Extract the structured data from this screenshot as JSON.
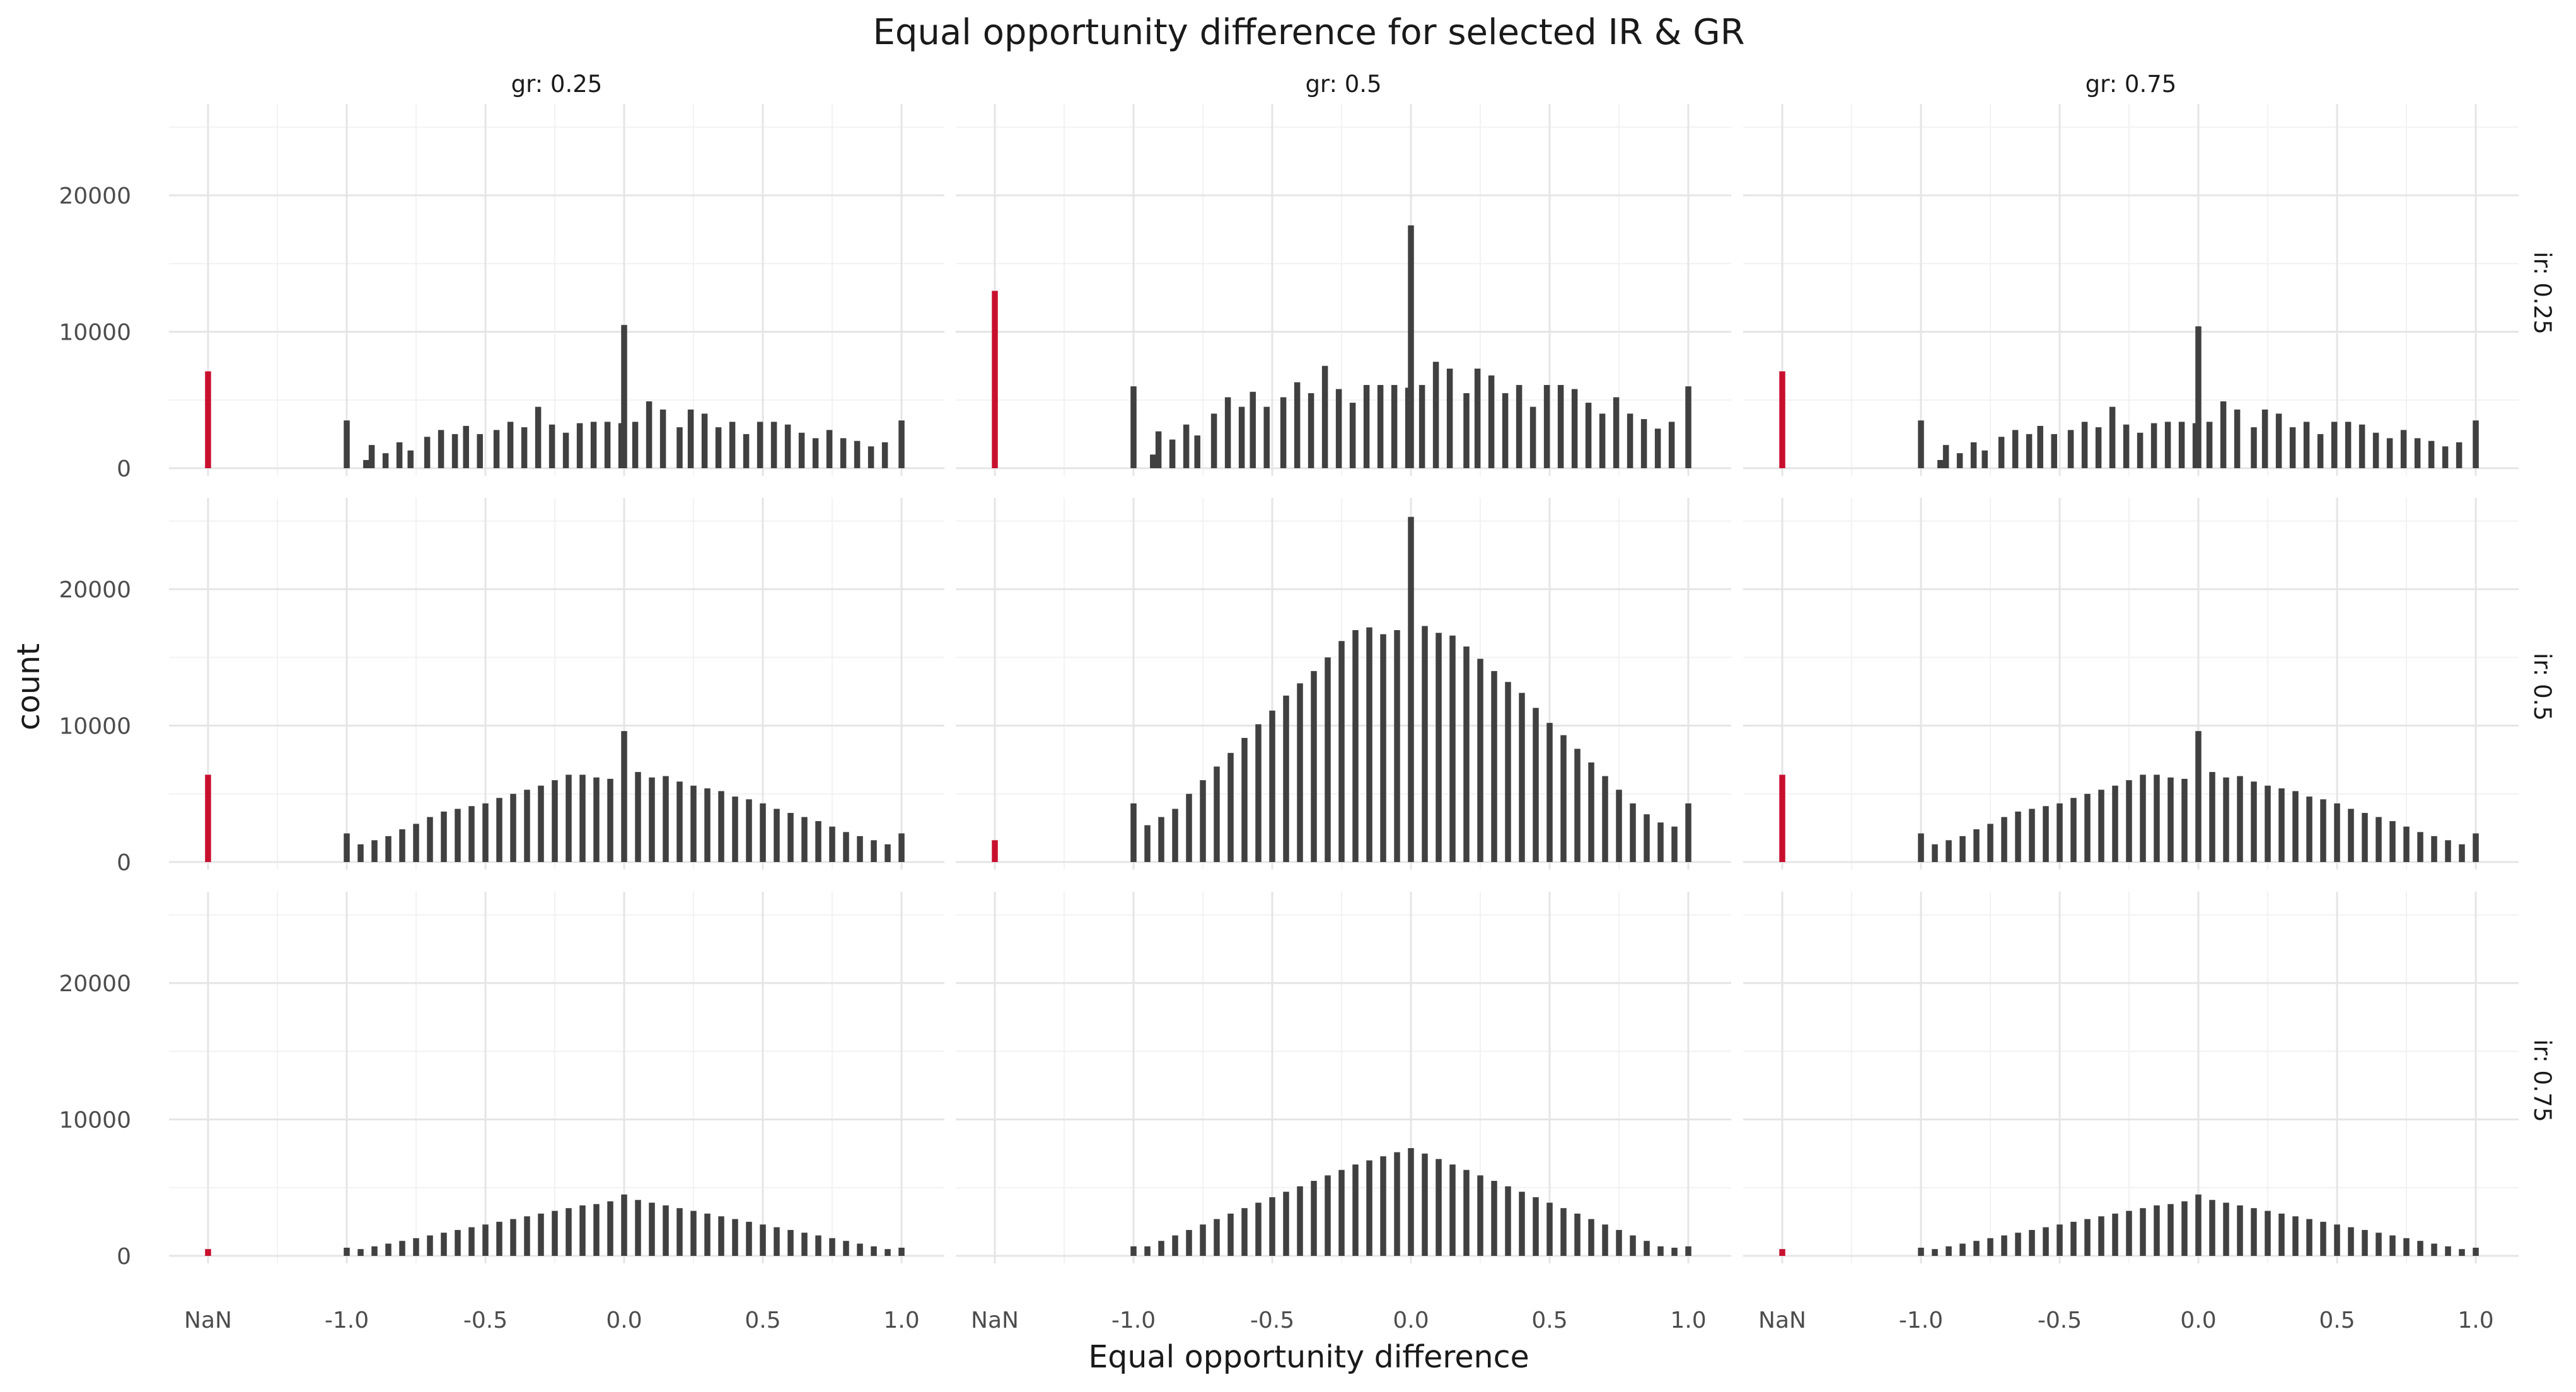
{
  "colors": {
    "bar": "#404040",
    "nan_bar": "#c8102e",
    "grid_major": "#e5e5e5",
    "grid_minor": "#f2f2f2",
    "background": "#ffffff"
  },
  "chart_data": {
    "type": "bar",
    "kind": "faceted histogram",
    "title": "Equal opportunity difference for selected IR & GR",
    "xlabel": "Equal opportunity difference",
    "ylabel": "count",
    "x_tick_labels": [
      "NaN",
      "-1.0",
      "-0.5",
      "0.0",
      "0.5",
      "1.0"
    ],
    "x_tick_values": [
      null,
      -1.0,
      -0.5,
      0.0,
      0.5,
      1.0
    ],
    "y_ticks": [
      0,
      10000,
      20000
    ],
    "ylim": [
      0,
      26000
    ],
    "xlim": [
      -1.15,
      1.0
    ],
    "bin_width": 0.0202,
    "nan_category": "NaN",
    "grid": true,
    "legend": "none",
    "col_facet_labels": [
      "gr: 0.25",
      "gr: 0.5",
      "gr: 0.75"
    ],
    "row_facet_labels": [
      "ir: 0.25",
      "ir: 0.5",
      "ir: 0.75"
    ],
    "panels": [
      {
        "ir": "ir: 0.25",
        "gr": "gr: 0.25",
        "nan_count": 7100,
        "x": [
          -1.0,
          -0.93,
          -0.91,
          -0.86,
          -0.81,
          -0.77,
          -0.71,
          -0.66,
          -0.61,
          -0.57,
          -0.52,
          -0.46,
          -0.41,
          -0.36,
          -0.31,
          -0.26,
          -0.21,
          -0.16,
          -0.11,
          -0.06,
          -0.01,
          0.0,
          0.04,
          0.09,
          0.14,
          0.2,
          0.24,
          0.29,
          0.34,
          0.39,
          0.44,
          0.49,
          0.54,
          0.59,
          0.64,
          0.69,
          0.74,
          0.79,
          0.84,
          0.89,
          0.94,
          1.0
        ],
        "y": [
          3500,
          600,
          1700,
          1100,
          1900,
          1300,
          2300,
          2800,
          2500,
          3100,
          2500,
          2800,
          3400,
          3000,
          4500,
          3200,
          2600,
          3300,
          3400,
          3400,
          3300,
          10500,
          3400,
          4900,
          4300,
          3000,
          4300,
          4000,
          3000,
          3400,
          2500,
          3400,
          3400,
          3200,
          2600,
          2200,
          2800,
          2200,
          2000,
          1600,
          1900,
          3500
        ]
      },
      {
        "ir": "ir: 0.25",
        "gr": "gr: 0.5",
        "nan_count": 13000,
        "x": [
          -1.0,
          -0.93,
          -0.91,
          -0.86,
          -0.81,
          -0.77,
          -0.71,
          -0.66,
          -0.61,
          -0.57,
          -0.52,
          -0.46,
          -0.41,
          -0.36,
          -0.31,
          -0.26,
          -0.21,
          -0.16,
          -0.11,
          -0.06,
          -0.01,
          0.0,
          0.04,
          0.09,
          0.14,
          0.2,
          0.24,
          0.29,
          0.34,
          0.39,
          0.44,
          0.49,
          0.54,
          0.59,
          0.64,
          0.69,
          0.74,
          0.79,
          0.84,
          0.89,
          0.94,
          1.0
        ],
        "y": [
          6000,
          1000,
          2700,
          2100,
          3200,
          2400,
          4000,
          5200,
          4500,
          5600,
          4500,
          5200,
          6300,
          5500,
          7500,
          5800,
          4800,
          6100,
          6100,
          6100,
          5900,
          17800,
          6100,
          7800,
          7300,
          5500,
          7300,
          6800,
          5500,
          6100,
          4500,
          6100,
          6100,
          5800,
          4800,
          4000,
          5200,
          4000,
          3600,
          2900,
          3400,
          6000
        ]
      },
      {
        "ir": "ir: 0.25",
        "gr": "gr: 0.75",
        "nan_count": 7100,
        "x": [
          -1.0,
          -0.93,
          -0.91,
          -0.86,
          -0.81,
          -0.77,
          -0.71,
          -0.66,
          -0.61,
          -0.57,
          -0.52,
          -0.46,
          -0.41,
          -0.36,
          -0.31,
          -0.26,
          -0.21,
          -0.16,
          -0.11,
          -0.06,
          -0.01,
          0.0,
          0.04,
          0.09,
          0.14,
          0.2,
          0.24,
          0.29,
          0.34,
          0.39,
          0.44,
          0.49,
          0.54,
          0.59,
          0.64,
          0.69,
          0.74,
          0.79,
          0.84,
          0.89,
          0.94,
          1.0
        ],
        "y": [
          3500,
          600,
          1700,
          1100,
          1900,
          1300,
          2300,
          2800,
          2500,
          3100,
          2500,
          2800,
          3400,
          3000,
          4500,
          3200,
          2600,
          3300,
          3400,
          3400,
          3300,
          10400,
          3400,
          4900,
          4300,
          3000,
          4300,
          4000,
          3000,
          3400,
          2500,
          3400,
          3400,
          3200,
          2600,
          2200,
          2800,
          2200,
          2000,
          1600,
          1900,
          3500
        ]
      },
      {
        "ir": "ir: 0.5",
        "gr": "gr: 0.25",
        "nan_count": 6400,
        "x": [
          -1.0,
          -0.95,
          -0.9,
          -0.85,
          -0.8,
          -0.75,
          -0.7,
          -0.65,
          -0.6,
          -0.55,
          -0.5,
          -0.45,
          -0.4,
          -0.35,
          -0.3,
          -0.25,
          -0.2,
          -0.15,
          -0.1,
          -0.05,
          0.0,
          0.05,
          0.1,
          0.15,
          0.2,
          0.25,
          0.3,
          0.35,
          0.4,
          0.45,
          0.5,
          0.55,
          0.6,
          0.65,
          0.7,
          0.75,
          0.8,
          0.85,
          0.9,
          0.95,
          1.0
        ],
        "y": [
          2100,
          1300,
          1600,
          1900,
          2400,
          2800,
          3300,
          3700,
          3900,
          4100,
          4300,
          4700,
          5000,
          5300,
          5600,
          6000,
          6400,
          6400,
          6200,
          6100,
          9600,
          6600,
          6200,
          6300,
          5900,
          5600,
          5400,
          5200,
          4800,
          4600,
          4300,
          3900,
          3600,
          3300,
          3000,
          2600,
          2200,
          1900,
          1600,
          1300,
          2100
        ]
      },
      {
        "ir": "ir: 0.5",
        "gr": "gr: 0.5",
        "nan_count": 1600,
        "x": [
          -1.0,
          -0.95,
          -0.9,
          -0.85,
          -0.8,
          -0.75,
          -0.7,
          -0.65,
          -0.6,
          -0.55,
          -0.5,
          -0.45,
          -0.4,
          -0.35,
          -0.3,
          -0.25,
          -0.2,
          -0.15,
          -0.1,
          -0.05,
          0.0,
          0.05,
          0.1,
          0.15,
          0.2,
          0.25,
          0.3,
          0.35,
          0.4,
          0.45,
          0.5,
          0.55,
          0.6,
          0.65,
          0.7,
          0.75,
          0.8,
          0.85,
          0.9,
          0.95,
          1.0
        ],
        "y": [
          4300,
          2700,
          3300,
          3900,
          5000,
          6000,
          7000,
          8000,
          9100,
          10100,
          11100,
          12200,
          13100,
          14000,
          15000,
          16200,
          17000,
          17200,
          16700,
          17000,
          25300,
          17300,
          16800,
          16600,
          15800,
          14900,
          14000,
          13200,
          12400,
          11300,
          10200,
          9300,
          8300,
          7300,
          6300,
          5300,
          4300,
          3500,
          2900,
          2600,
          4300
        ]
      },
      {
        "ir": "ir: 0.5",
        "gr": "gr: 0.75",
        "nan_count": 6400,
        "x": [
          -1.0,
          -0.95,
          -0.9,
          -0.85,
          -0.8,
          -0.75,
          -0.7,
          -0.65,
          -0.6,
          -0.55,
          -0.5,
          -0.45,
          -0.4,
          -0.35,
          -0.3,
          -0.25,
          -0.2,
          -0.15,
          -0.1,
          -0.05,
          0.0,
          0.05,
          0.1,
          0.15,
          0.2,
          0.25,
          0.3,
          0.35,
          0.4,
          0.45,
          0.5,
          0.55,
          0.6,
          0.65,
          0.7,
          0.75,
          0.8,
          0.85,
          0.9,
          0.95,
          1.0
        ],
        "y": [
          2100,
          1300,
          1600,
          1900,
          2400,
          2800,
          3300,
          3700,
          3900,
          4100,
          4300,
          4700,
          5000,
          5300,
          5600,
          6000,
          6400,
          6400,
          6200,
          6100,
          9600,
          6600,
          6200,
          6300,
          5900,
          5600,
          5400,
          5200,
          4800,
          4600,
          4300,
          3900,
          3600,
          3300,
          3000,
          2600,
          2200,
          1900,
          1600,
          1300,
          2100
        ]
      },
      {
        "ir": "ir: 0.75",
        "gr": "gr: 0.25",
        "nan_count": 500,
        "x": [
          -1.0,
          -0.95,
          -0.9,
          -0.85,
          -0.8,
          -0.75,
          -0.7,
          -0.65,
          -0.6,
          -0.55,
          -0.5,
          -0.45,
          -0.4,
          -0.35,
          -0.3,
          -0.25,
          -0.2,
          -0.15,
          -0.1,
          -0.05,
          0.0,
          0.05,
          0.1,
          0.15,
          0.2,
          0.25,
          0.3,
          0.35,
          0.4,
          0.45,
          0.5,
          0.55,
          0.6,
          0.65,
          0.7,
          0.75,
          0.8,
          0.85,
          0.9,
          0.95,
          1.0
        ],
        "y": [
          600,
          500,
          700,
          900,
          1100,
          1300,
          1500,
          1700,
          1900,
          2100,
          2300,
          2500,
          2700,
          2900,
          3100,
          3300,
          3500,
          3700,
          3800,
          4000,
          4500,
          4100,
          3900,
          3700,
          3500,
          3300,
          3100,
          2900,
          2700,
          2500,
          2300,
          2100,
          1900,
          1700,
          1500,
          1300,
          1100,
          900,
          700,
          500,
          600
        ]
      },
      {
        "ir": "ir: 0.75",
        "gr": "gr: 0.5",
        "nan_count": 0,
        "x": [
          -1.0,
          -0.95,
          -0.9,
          -0.85,
          -0.8,
          -0.75,
          -0.7,
          -0.65,
          -0.6,
          -0.55,
          -0.5,
          -0.45,
          -0.4,
          -0.35,
          -0.3,
          -0.25,
          -0.2,
          -0.15,
          -0.1,
          -0.05,
          0.0,
          0.05,
          0.1,
          0.15,
          0.2,
          0.25,
          0.3,
          0.35,
          0.4,
          0.45,
          0.5,
          0.55,
          0.6,
          0.65,
          0.7,
          0.75,
          0.8,
          0.85,
          0.9,
          0.95,
          1.0
        ],
        "y": [
          700,
          700,
          1100,
          1500,
          1900,
          2300,
          2700,
          3100,
          3500,
          3900,
          4300,
          4700,
          5100,
          5500,
          5900,
          6300,
          6700,
          7000,
          7300,
          7600,
          7900,
          7500,
          7100,
          6700,
          6300,
          5900,
          5500,
          5100,
          4700,
          4300,
          3900,
          3500,
          3100,
          2700,
          2300,
          1900,
          1500,
          1100,
          700,
          600,
          700
        ]
      },
      {
        "ir": "ir: 0.75",
        "gr": "gr: 0.75",
        "nan_count": 500,
        "x": [
          -1.0,
          -0.95,
          -0.9,
          -0.85,
          -0.8,
          -0.75,
          -0.7,
          -0.65,
          -0.6,
          -0.55,
          -0.5,
          -0.45,
          -0.4,
          -0.35,
          -0.3,
          -0.25,
          -0.2,
          -0.15,
          -0.1,
          -0.05,
          0.0,
          0.05,
          0.1,
          0.15,
          0.2,
          0.25,
          0.3,
          0.35,
          0.4,
          0.45,
          0.5,
          0.55,
          0.6,
          0.65,
          0.7,
          0.75,
          0.8,
          0.85,
          0.9,
          0.95,
          1.0
        ],
        "y": [
          600,
          500,
          700,
          900,
          1100,
          1300,
          1500,
          1700,
          1900,
          2100,
          2300,
          2500,
          2700,
          2900,
          3100,
          3300,
          3500,
          3700,
          3800,
          4000,
          4500,
          4100,
          3900,
          3700,
          3500,
          3300,
          3100,
          2900,
          2700,
          2500,
          2300,
          2100,
          1900,
          1700,
          1500,
          1300,
          1100,
          900,
          700,
          500,
          600
        ]
      }
    ]
  }
}
